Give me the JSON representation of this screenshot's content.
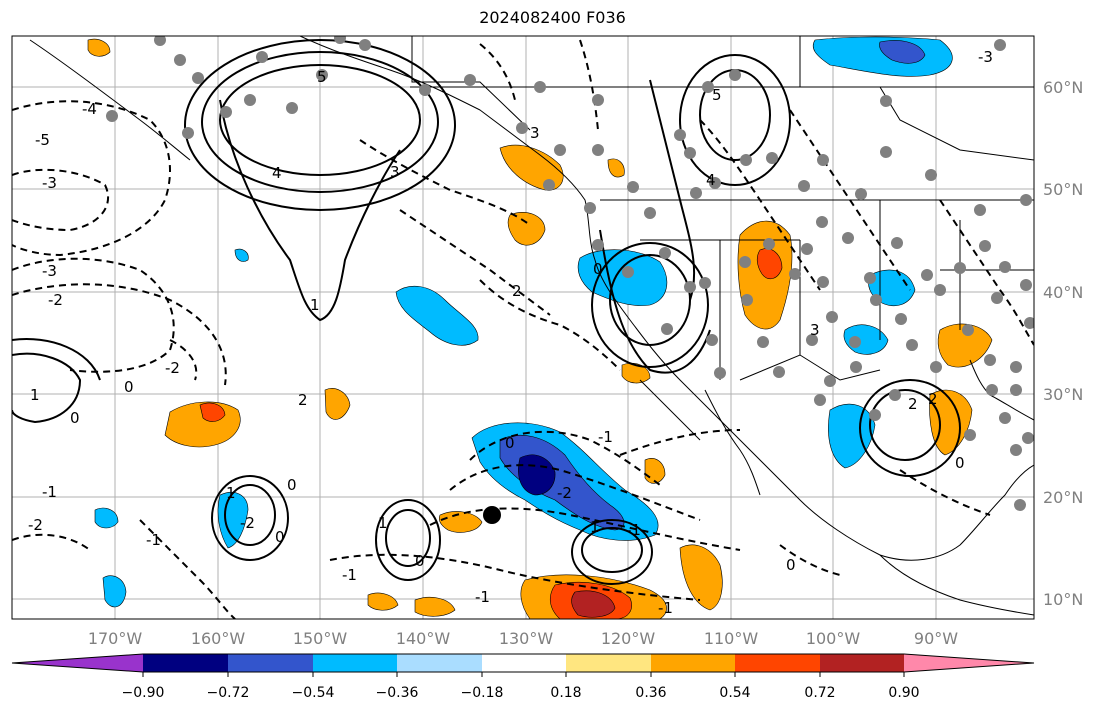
{
  "title": "2024082400 F036",
  "map": {
    "lon_labels": [
      "170°W",
      "160°W",
      "150°W",
      "140°W",
      "130°W",
      "120°W",
      "110°W",
      "100°W",
      "90°W"
    ],
    "lat_labels": [
      "60°N",
      "50°N",
      "40°N",
      "30°N",
      "20°N",
      "10°N"
    ],
    "contour_labels": [
      "-4",
      "-5",
      "-3",
      "-3",
      "-2",
      "-1",
      "-2",
      "5",
      "4",
      "3",
      "3",
      "1",
      "2",
      "0",
      "-2",
      "-1",
      "1",
      "0",
      "0",
      "1",
      "2",
      "0",
      "-2",
      "-1",
      "1",
      "0",
      "-1",
      "3",
      "2",
      "0",
      "5",
      "4",
      "-2",
      "-1",
      "-1",
      "-1",
      "0",
      "-3",
      "2",
      "0",
      "1",
      "0"
    ]
  },
  "colorbar": {
    "ticks": [
      "−0.90",
      "−0.72",
      "−0.54",
      "−0.36",
      "−0.18",
      "0.18",
      "0.36",
      "0.54",
      "0.72",
      "0.90"
    ],
    "colors": [
      "#9933cc",
      "#000080",
      "#3355cc",
      "#00bbff",
      "#aaddff",
      "#ffffff",
      "#ffe680",
      "#ffa500",
      "#ff4500",
      "#b22222",
      "#ff88aa"
    ]
  }
}
